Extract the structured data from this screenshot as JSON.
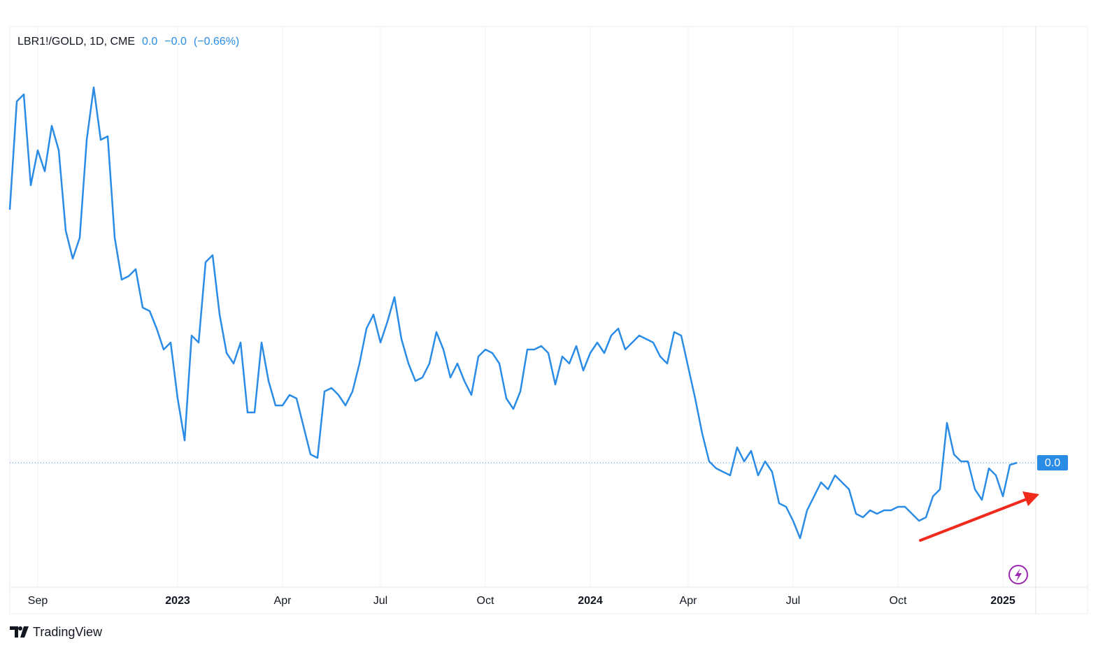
{
  "chart_data": {
    "type": "line",
    "header": {
      "symbol": "LBR1!/GOLD, 1D, CME",
      "last": {
        "value": 0.02008,
        "label": "0.0"
      },
      "change": {
        "value": -0.00013,
        "label": "−0.0"
      },
      "change_percent": {
        "value": -0.66,
        "label": "(−0.66%)"
      }
    },
    "brand": "TradingView",
    "categories": [
      null,
      null,
      null,
      null,
      "Sep",
      null,
      null,
      null,
      null,
      null,
      null,
      null,
      null,
      null,
      null,
      null,
      null,
      null,
      null,
      null,
      null,
      null,
      null,
      null,
      "2023",
      null,
      null,
      null,
      null,
      null,
      null,
      null,
      null,
      null,
      null,
      null,
      null,
      null,
      null,
      "Apr",
      null,
      null,
      null,
      null,
      null,
      null,
      null,
      null,
      null,
      null,
      null,
      null,
      null,
      "Jul",
      null,
      null,
      null,
      null,
      null,
      null,
      null,
      null,
      null,
      null,
      null,
      null,
      null,
      null,
      "Oct",
      null,
      null,
      null,
      null,
      null,
      null,
      null,
      null,
      null,
      null,
      null,
      null,
      null,
      null,
      "2024",
      null,
      null,
      null,
      null,
      null,
      null,
      null,
      null,
      null,
      null,
      null,
      null,
      null,
      "Apr",
      null,
      null,
      null,
      null,
      null,
      null,
      null,
      null,
      null,
      null,
      null,
      null,
      null,
      null,
      "Jul",
      null,
      null,
      null,
      null,
      null,
      null,
      null,
      null,
      null,
      null,
      null,
      null,
      null,
      null,
      "Oct",
      null,
      null,
      null,
      null,
      null,
      null,
      null,
      null,
      null,
      null,
      null,
      null,
      null,
      null,
      "2025",
      null,
      null
    ],
    "series": [
      {
        "name": "LBR1!/GOLD",
        "color": "#2b8ce6",
        "values": [
          0.03456,
          0.04076,
          0.04116,
          0.03596,
          0.03796,
          0.03676,
          0.03936,
          0.03796,
          0.03336,
          0.03176,
          0.03296,
          0.03856,
          0.04156,
          0.03856,
          0.03876,
          0.03296,
          0.03056,
          0.03076,
          0.03116,
          0.02896,
          0.02876,
          0.02776,
          0.02656,
          0.02696,
          0.02376,
          0.02136,
          0.02736,
          0.02696,
          0.03156,
          0.03196,
          0.02856,
          0.02636,
          0.02576,
          0.02696,
          0.02296,
          0.02296,
          0.02696,
          0.02476,
          0.02336,
          0.02336,
          0.02396,
          0.02376,
          0.02216,
          0.02056,
          0.02036,
          0.02416,
          0.02436,
          0.02396,
          0.02336,
          0.02416,
          0.02576,
          0.02776,
          0.02856,
          0.02696,
          0.02816,
          0.02956,
          0.02716,
          0.02576,
          0.02476,
          0.02496,
          0.02576,
          0.02756,
          0.02656,
          0.02496,
          0.02576,
          0.02476,
          0.02396,
          0.02616,
          0.02656,
          0.02636,
          0.02576,
          0.02376,
          0.02316,
          0.02416,
          0.02656,
          0.02656,
          0.02676,
          0.02636,
          0.02456,
          0.02616,
          0.02576,
          0.02676,
          0.02536,
          0.02636,
          0.02696,
          0.02636,
          0.02736,
          0.02776,
          0.02656,
          0.02696,
          0.02736,
          0.02716,
          0.02696,
          0.02616,
          0.02576,
          0.02756,
          0.02736,
          0.02556,
          0.02376,
          0.02176,
          0.02016,
          0.01976,
          0.01956,
          0.01936,
          0.02096,
          0.02016,
          0.02076,
          0.01936,
          0.02016,
          0.01956,
          0.01776,
          0.01756,
          0.01676,
          0.01576,
          0.01736,
          0.01816,
          0.01896,
          0.01856,
          0.01936,
          0.01896,
          0.01856,
          0.01716,
          0.01696,
          0.01736,
          0.01716,
          0.01736,
          0.01736,
          0.01756,
          0.01756,
          0.01716,
          0.01676,
          0.01696,
          0.01816,
          0.01856,
          0.02236,
          0.02056,
          0.02016,
          0.02016,
          0.01856,
          0.01796,
          0.01976,
          0.01936,
          0.01816,
          0.01996,
          0.02008
        ]
      }
    ],
    "ylim": [
      0.01296,
      0.04504
    ],
    "yticks": [
      {
        "value": 0.02008,
        "label": "0.0"
      }
    ],
    "grid": true
  }
}
